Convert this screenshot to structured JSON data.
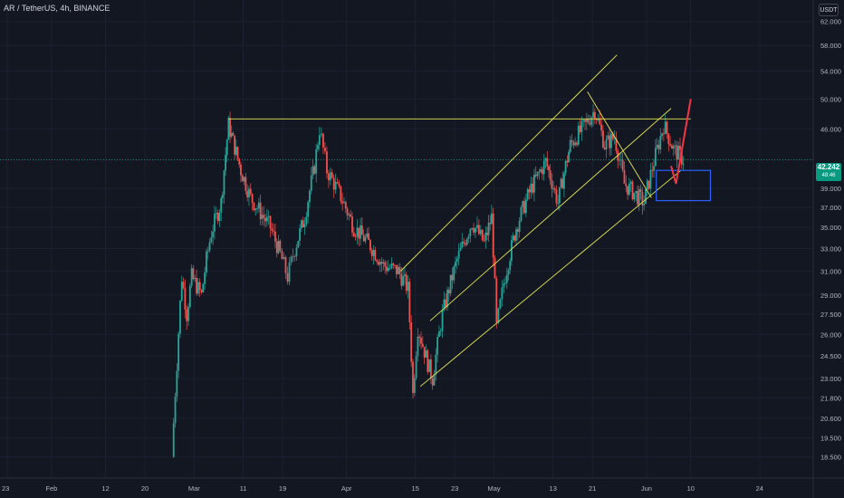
{
  "header": {
    "symbol_title": "AR / TetherUS, 4h, BINANCE",
    "unit_button": "USDT"
  },
  "price_tag": {
    "price": "42.242",
    "countdown": "48:46"
  },
  "colors": {
    "background": "#131722",
    "up_candle": "#26a69a",
    "down_candle": "#ef5350",
    "trendline": "#e6e651",
    "support_box": "#2962ff",
    "projection": "#f23645",
    "current_price_line": "#089981"
  },
  "chart_data": {
    "type": "candlestick",
    "title": "AR / TetherUS, 4h, BINANCE",
    "yscale": "log",
    "ylim": [
      17.8,
      64.5
    ],
    "y_ticks": [
      "62.000",
      "58.000",
      "54.000",
      "50.000",
      "46.000",
      "42.242",
      "39.000",
      "37.000",
      "35.000",
      "33.000",
      "31.000",
      "29.000",
      "27.500",
      "26.000",
      "24.500",
      "23.000",
      "21.800",
      "20.600",
      "19.500",
      "18.500"
    ],
    "x_ticks": [
      "23",
      "Feb",
      "12",
      "20",
      "Mar",
      "11",
      "19",
      "Apr",
      "15",
      "23",
      "May",
      "13",
      "21",
      "Jun",
      "10",
      "24"
    ],
    "current_price": 42.242,
    "price_path": [
      [
        "Feb 25 12:00",
        18.5
      ],
      [
        "Feb 26 12:00",
        24
      ],
      [
        "Feb 27 12:00",
        30.5
      ],
      [
        "Feb 28 12:00",
        27.5
      ],
      [
        "Feb 29 12:00",
        30.5
      ],
      [
        "Mar 02 12:00",
        29
      ],
      [
        "Mar 03 12:00",
        32
      ],
      [
        "Mar 04 12:00",
        34.5
      ],
      [
        "Mar 06 12:00",
        37.5
      ],
      [
        "Mar 08 00:00",
        46.5
      ],
      [
        "Mar 10 12:00",
        41
      ],
      [
        "Mar 12 12:00",
        38
      ],
      [
        "Mar 14 12:00",
        36.5
      ],
      [
        "Mar 16 12:00",
        35
      ],
      [
        "Mar 18 12:00",
        32.5
      ],
      [
        "Mar 20 00:00",
        30.5
      ],
      [
        "Mar 21 12:00",
        33
      ],
      [
        "Mar 23 12:00",
        36
      ],
      [
        "Mar 25 12:00",
        41.5
      ],
      [
        "Mar 26 12:00",
        46
      ],
      [
        "Mar 28 00:00",
        41
      ],
      [
        "Mar 30 12:00",
        38.5
      ],
      [
        "Apr 02 12:00",
        35
      ],
      [
        "Apr 05 12:00",
        33.5
      ],
      [
        "Apr 08 12:00",
        31.5
      ],
      [
        "Apr 11 12:00",
        31
      ],
      [
        "Apr 13 12:00",
        29.5
      ],
      [
        "Apr 14 12:00",
        22
      ],
      [
        "Apr 15 12:00",
        26.5
      ],
      [
        "Apr 17 12:00",
        24
      ],
      [
        "Apr 18 12:00",
        23
      ],
      [
        "Apr 20 12:00",
        27.5
      ],
      [
        "Apr 23 12:00",
        32
      ],
      [
        "Apr 26 12:00",
        35.5
      ],
      [
        "Apr 29 00:00",
        33.5
      ],
      [
        "Apr 30 12:00",
        36
      ],
      [
        "May 01 12:00",
        26.5
      ],
      [
        "May 03 00:00",
        30
      ],
      [
        "May 05 12:00",
        35
      ],
      [
        "May 08 12:00",
        39
      ],
      [
        "May 11 12:00",
        42
      ],
      [
        "May 14 00:00",
        37.5
      ],
      [
        "May 16 12:00",
        44
      ],
      [
        "May 19 12:00",
        46.5
      ],
      [
        "May 21 12:00",
        48.5
      ],
      [
        "May 23 12:00",
        44
      ],
      [
        "May 25 12:00",
        45
      ],
      [
        "May 27 12:00",
        39.5
      ],
      [
        "May 29 12:00",
        38.5
      ],
      [
        "May 31 12:00",
        37.5
      ],
      [
        "Jun 02 12:00",
        42
      ],
      [
        "Jun 04 12:00",
        46.5
      ],
      [
        "Jun 06 12:00",
        43.5
      ],
      [
        "Jun 08 12:00",
        42.242
      ]
    ],
    "drawings": {
      "horizontal_resistance": {
        "from": [
          "Mar 08",
          47.3
        ],
        "to": [
          "Jun 10",
          47.3
        ]
      },
      "upper_channel_line": {
        "from": [
          "Apr 12",
          31.0
        ],
        "to": [
          "May 26",
          56.5
        ]
      },
      "middle_channel_line": {
        "from": [
          "Apr 18",
          27.0
        ],
        "to": [
          "Jun 06",
          48.7
        ]
      },
      "lower_channel_line": {
        "from": [
          "Apr 16",
          22.5
        ],
        "to": [
          "Jun 08",
          41.0
        ]
      },
      "falling_wedge_line": {
        "from": [
          "May 20",
          51.0
        ],
        "to": [
          "Jun 02",
          38.0
        ]
      },
      "support_box": {
        "from": [
          "Jun 03",
          41.0
        ],
        "to": [
          "Jun 14",
          37.7
        ]
      },
      "projection_path": [
        [
          "Jun 06",
          41.5
        ],
        [
          "Jun 07",
          39.5
        ],
        [
          "Jun 10",
          50.0
        ]
      ]
    }
  }
}
